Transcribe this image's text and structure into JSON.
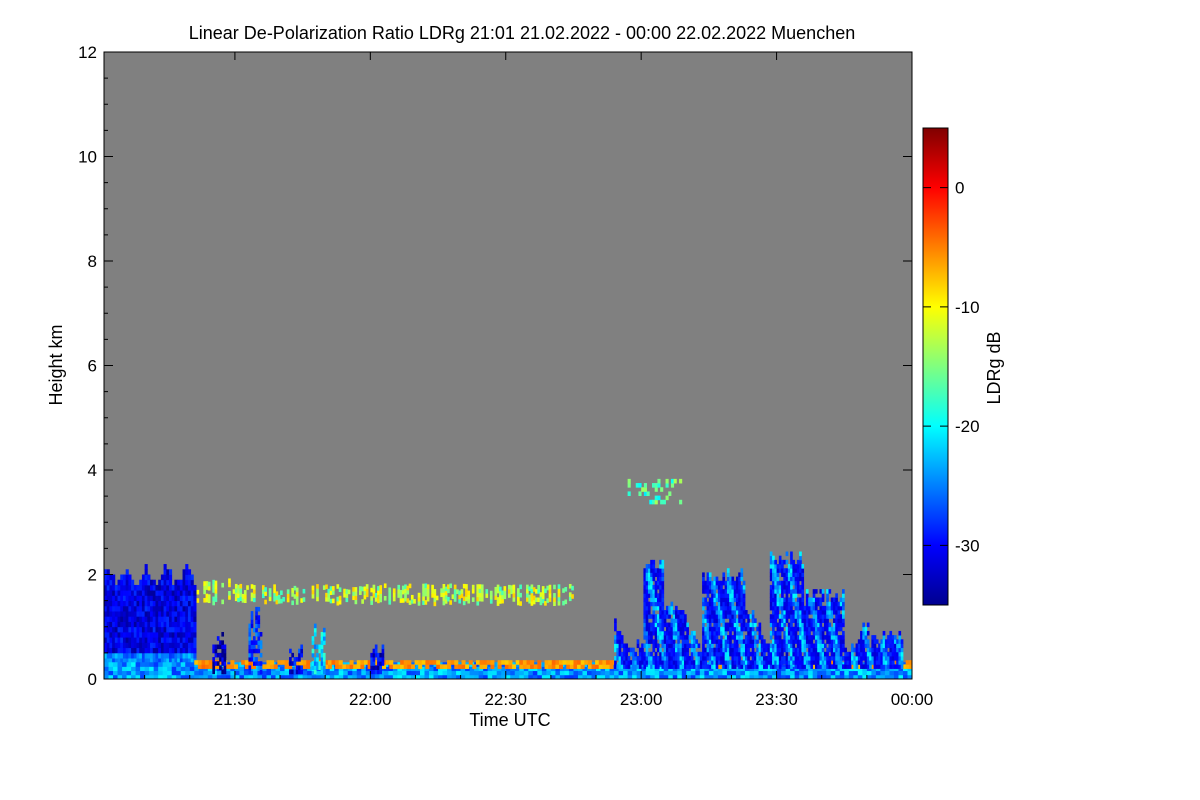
{
  "chart_data": {
    "type": "heatmap",
    "title": "Linear De-Polarization Ratio LDRg   21:01 21.02.2022 - 00:00 22.02.2022 Muenchen",
    "xlabel": "Time UTC",
    "ylabel": "Height km",
    "x_range_minutes_utc": [
      1261,
      1440
    ],
    "x_ticks": [
      {
        "minute": 1290,
        "label": "21:30"
      },
      {
        "minute": 1320,
        "label": "22:00"
      },
      {
        "minute": 1350,
        "label": "22:30"
      },
      {
        "minute": 1380,
        "label": "23:00"
      },
      {
        "minute": 1410,
        "label": "23:30"
      },
      {
        "minute": 1440,
        "label": "00:00"
      }
    ],
    "y_range_km": [
      0,
      12
    ],
    "y_ticks": [
      0,
      2,
      4,
      6,
      8,
      10,
      12
    ],
    "background_color": "#808080",
    "colorbar": {
      "label": "LDRg dB",
      "range_db": [
        -35,
        5
      ],
      "ticks": [
        0,
        -10,
        -20,
        -30
      ],
      "colormap": "jet"
    },
    "features": [
      {
        "name": "boundary-layer-near-surface",
        "start": 1261,
        "end": 1440,
        "bottom_km": 0.0,
        "top_km": 0.25,
        "ldr_db": -24
      },
      {
        "name": "precipitation-fall-streaks-early",
        "start": 1261,
        "end": 1281,
        "bottom_km": 0.2,
        "top_km": 2.2,
        "ldr_db": -31
      },
      {
        "name": "thin-layer-1.6km",
        "start": 1281,
        "end": 1365,
        "bottom_km": 1.45,
        "top_km": 1.75,
        "ldr_db": -13
      },
      {
        "name": "low-level-aerosol-layer",
        "start": 1281,
        "end": 1440,
        "bottom_km": 0.2,
        "top_km": 0.35,
        "ldr_db": -6
      },
      {
        "name": "isolated-virga-22:00",
        "start": 1320,
        "end": 1323,
        "bottom_km": 0.1,
        "top_km": 0.7,
        "ldr_db": -31
      },
      {
        "name": "ice-cloud-23:00-00:00",
        "start": 1374,
        "end": 1438,
        "bottom_km": 0.2,
        "top_km": 2.4,
        "ldr_db": -26
      },
      {
        "name": "faint-cloud-4km",
        "start": 1377,
        "end": 1389,
        "bottom_km": 3.35,
        "top_km": 3.8,
        "ldr_db": -17
      }
    ]
  }
}
